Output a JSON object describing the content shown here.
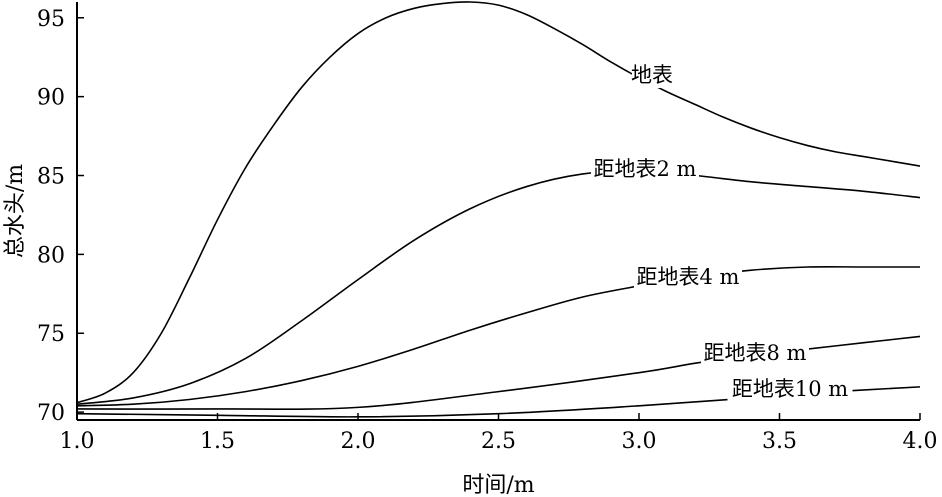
{
  "chart_data": {
    "type": "line",
    "title": "",
    "xlabel": "时间/m",
    "ylabel": "总水头/m",
    "xlim": [
      1.0,
      4.0
    ],
    "ylim": [
      69.5,
      96
    ],
    "x_ticks": [
      "1.0",
      "1.5",
      "2.0",
      "2.5",
      "3.0",
      "3.5",
      "4.0"
    ],
    "y_ticks": [
      "70",
      "75",
      "80",
      "85",
      "90",
      "95"
    ],
    "grid": false,
    "legend": "inline labels on curves",
    "series": [
      {
        "name": "地表",
        "x": [
          1.0,
          1.1,
          1.2,
          1.3,
          1.4,
          1.5,
          1.6,
          1.7,
          1.8,
          1.9,
          2.0,
          2.1,
          2.2,
          2.3,
          2.4,
          2.5,
          2.6,
          2.7,
          2.8,
          2.9,
          3.0,
          3.1,
          3.2,
          3.3,
          3.4,
          3.5,
          3.6,
          3.7,
          3.8,
          3.9,
          4.0
        ],
        "values": [
          70.6,
          71.2,
          72.5,
          75.0,
          78.5,
          82.2,
          85.5,
          88.2,
          90.6,
          92.5,
          94.0,
          95.0,
          95.6,
          95.9,
          96.0,
          95.8,
          95.2,
          94.3,
          93.3,
          92.2,
          91.2,
          90.3,
          89.5,
          88.7,
          88.0,
          87.4,
          86.9,
          86.5,
          86.2,
          85.9,
          85.6
        ]
      },
      {
        "name": "距地表2 m",
        "x": [
          1.0,
          1.2,
          1.4,
          1.6,
          1.8,
          2.0,
          2.2,
          2.4,
          2.6,
          2.8,
          3.0,
          3.2,
          3.4,
          3.6,
          3.8,
          4.0
        ],
        "values": [
          70.5,
          70.9,
          71.8,
          73.4,
          75.8,
          78.4,
          80.9,
          82.9,
          84.3,
          85.1,
          85.3,
          85.0,
          84.6,
          84.3,
          84.0,
          83.6
        ]
      },
      {
        "name": "距地表4 m",
        "x": [
          1.0,
          1.2,
          1.4,
          1.6,
          1.8,
          2.0,
          2.2,
          2.4,
          2.6,
          2.8,
          3.0,
          3.2,
          3.4,
          3.6,
          3.8,
          4.0
        ],
        "values": [
          70.4,
          70.5,
          70.8,
          71.3,
          72.0,
          72.9,
          74.0,
          75.2,
          76.3,
          77.3,
          78.0,
          78.6,
          79.0,
          79.2,
          79.2,
          79.2
        ]
      },
      {
        "name": "距地表8 m",
        "x": [
          1.0,
          1.5,
          2.0,
          2.5,
          3.0,
          3.2,
          3.4,
          3.6,
          3.8,
          4.0
        ],
        "values": [
          70.2,
          70.2,
          70.3,
          71.3,
          72.5,
          73.1,
          73.6,
          74.0,
          74.4,
          74.8
        ]
      },
      {
        "name": "距地表10 m",
        "x": [
          1.0,
          1.5,
          2.0,
          2.5,
          3.0,
          3.4,
          3.6,
          4.0
        ],
        "values": [
          69.9,
          69.8,
          69.7,
          69.9,
          70.4,
          70.9,
          71.2,
          71.6
        ]
      }
    ]
  }
}
